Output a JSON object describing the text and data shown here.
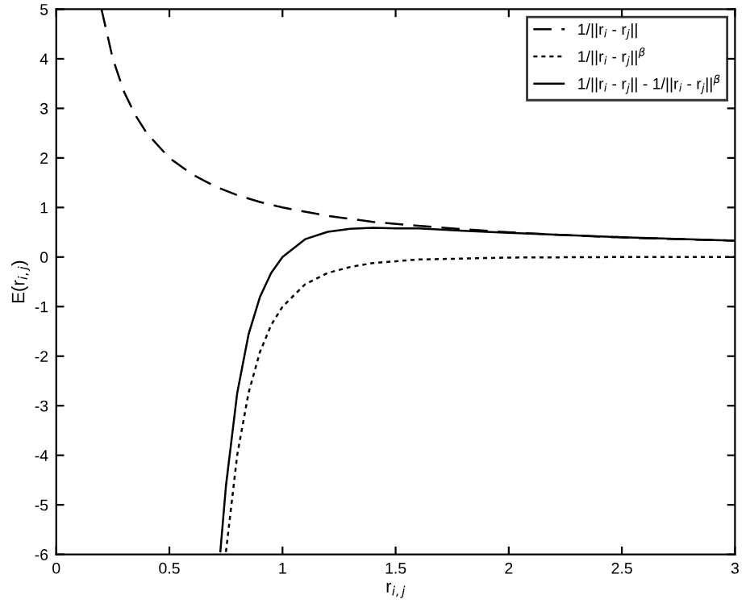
{
  "chart_data": {
    "type": "line",
    "xlabel": "r$_{i,j}$",
    "ylabel": "E(r$_{i,j}$)",
    "xlim": [
      0,
      3
    ],
    "ylim": [
      -6,
      5
    ],
    "xticks": [
      0,
      0.5,
      1,
      1.5,
      2,
      2.5,
      3
    ],
    "yticks": [
      -6,
      -5,
      -4,
      -3,
      -2,
      -1,
      0,
      1,
      2,
      3,
      4,
      5
    ],
    "grid": false,
    "legend": "top right",
    "marker": "none",
    "series": [
      {
        "name": "1/||r$_{i}$ - r$_{j}$||",
        "color": "#000000",
        "line_style": "dashed",
        "x": [
          0.2,
          0.25,
          0.3,
          0.35,
          0.4,
          0.5,
          0.6,
          0.7,
          0.8,
          0.9,
          1.0,
          1.2,
          1.4,
          1.6,
          1.8,
          2.0,
          2.3,
          2.6,
          3.0
        ],
        "values": [
          5,
          4,
          3.33,
          2.86,
          2.5,
          2,
          1.67,
          1.43,
          1.25,
          1.11,
          1,
          0.83,
          0.71,
          0.63,
          0.56,
          0.5,
          0.43,
          0.38,
          0.33
        ]
      },
      {
        "name": "1/||r$_{i}$ - r$_{j}$||$^{β}$",
        "color": "#000000",
        "line_style": "dotted",
        "x": [
          0.75,
          0.8,
          0.85,
          0.9,
          0.95,
          1.0,
          1.1,
          1.2,
          1.3,
          1.4,
          1.6,
          1.8,
          2.0,
          2.5,
          3.0
        ],
        "values": [
          -5.95,
          -3.99,
          -2.74,
          -1.92,
          -1.37,
          -1,
          -0.55,
          -0.32,
          -0.2,
          -0.12,
          -0.05,
          -0.03,
          -0.01,
          0,
          0
        ]
      },
      {
        "name": "1/||r$_{i}$ - r$_{j}$|| - 1/||r$_{i}$ - r$_{j}$||$^{β}$",
        "color": "#000000",
        "line_style": "solid",
        "x": [
          0.725,
          0.75,
          0.8,
          0.85,
          0.9,
          0.95,
          1.0,
          1.1,
          1.2,
          1.3,
          1.4,
          1.5,
          1.6,
          1.8,
          2.0,
          2.5,
          3.0
        ],
        "values": [
          -5.96,
          -4.62,
          -2.74,
          -1.56,
          -0.81,
          -0.32,
          0,
          0.36,
          0.51,
          0.57,
          0.59,
          0.58,
          0.58,
          0.53,
          0.49,
          0.4,
          0.33
        ]
      }
    ]
  }
}
